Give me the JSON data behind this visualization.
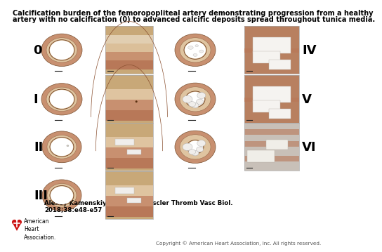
{
  "title_line1": "Calcification burden of the femoropopliteal artery demonstrating progression from a healthy",
  "title_line2": "artery with no calcification (0) to advanced calcific deposits spread throughout tunica media.",
  "citation_line1": "Alexey Kamenskiy et al. Arterioscler Thromb Vasc Biol.",
  "citation_line2": "2018;38:e48-e57",
  "copyright": "Copyright © American Heart Association, Inc. All rights reserved.",
  "bg": "#ffffff",
  "title_fs": 7.0,
  "cite_fs": 6.2,
  "copy_fs": 5.2,
  "label_fs": 13,
  "aha_red": "#cc1111",
  "outer1": "#c89070",
  "outer2": "#b87858",
  "inner1": "#dfc4a0",
  "inner2": "#e8d8c0",
  "lumen": "#ffffff",
  "zoom_tan": "#c8a878",
  "zoom_pink": "#d09878",
  "zoom_dark": "#a07050",
  "calcif_white": "#f0eeec",
  "border": "#aaaaaa",
  "scale_color": "#222222"
}
